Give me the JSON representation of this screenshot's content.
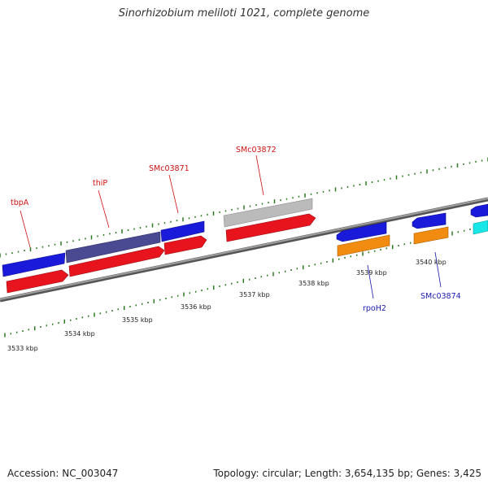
{
  "title": "Sinorhizobium meliloti 1021, complete genome",
  "footer": {
    "accession": "Accession: NC_003047",
    "summary": "Topology: circular; Length: 3,654,135 bp; Genes: 3,425"
  },
  "colors": {
    "background": "#ffffff",
    "backbone": "#888888",
    "tick_marks": "#2a7a1f",
    "forward_blue": "#1a1adb",
    "reverse_red": "#e8141d",
    "operon_violet": "#4a4a92",
    "pseudo_gray": "#bbbbbb",
    "orange": "#f28c10",
    "cyan": "#19e6e6",
    "label_forward": "#cc1111",
    "label_reverse": "#1a1ab0"
  },
  "scale_labels": [
    "3533 kbp",
    "3534 kbp",
    "3535 kbp",
    "3536 kbp",
    "3537 kbp",
    "3538 kbp",
    "3539 kbp",
    "3540 kbp"
  ],
  "gene_labels": [
    {
      "name": "tbpA",
      "strand": "forward"
    },
    {
      "name": "thiP",
      "strand": "forward"
    },
    {
      "name": "SMc03871",
      "strand": "forward"
    },
    {
      "name": "SMc03872",
      "strand": "forward"
    },
    {
      "name": "rpoH2",
      "strand": "reverse"
    },
    {
      "name": "SMc03874",
      "strand": "reverse"
    }
  ]
}
